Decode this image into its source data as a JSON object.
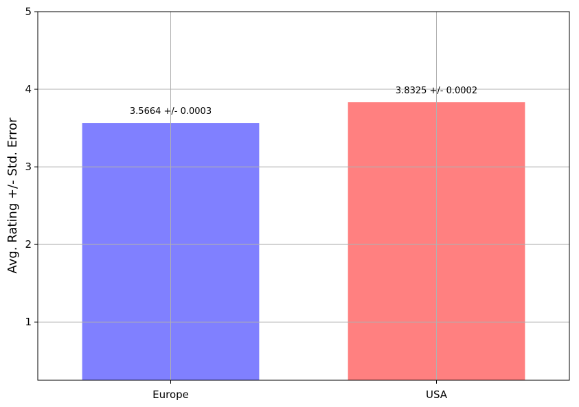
{
  "chart_data": {
    "type": "bar",
    "title": "",
    "xlabel": "",
    "ylabel": "Avg. Rating +/- Std. Error",
    "categories": [
      "Europe",
      "USA"
    ],
    "values": [
      3.5664,
      3.8325
    ],
    "errors": [
      0.0003,
      0.0002
    ],
    "data_labels": [
      "3.5664 +/- 0.0003",
      "3.8325 +/- 0.0002"
    ],
    "colors": [
      "#8080ff",
      "#ff8080"
    ],
    "ylim": [
      0.25,
      5
    ],
    "yticks": [
      1,
      2,
      3,
      4,
      5
    ],
    "grid": true,
    "legend": "none"
  }
}
